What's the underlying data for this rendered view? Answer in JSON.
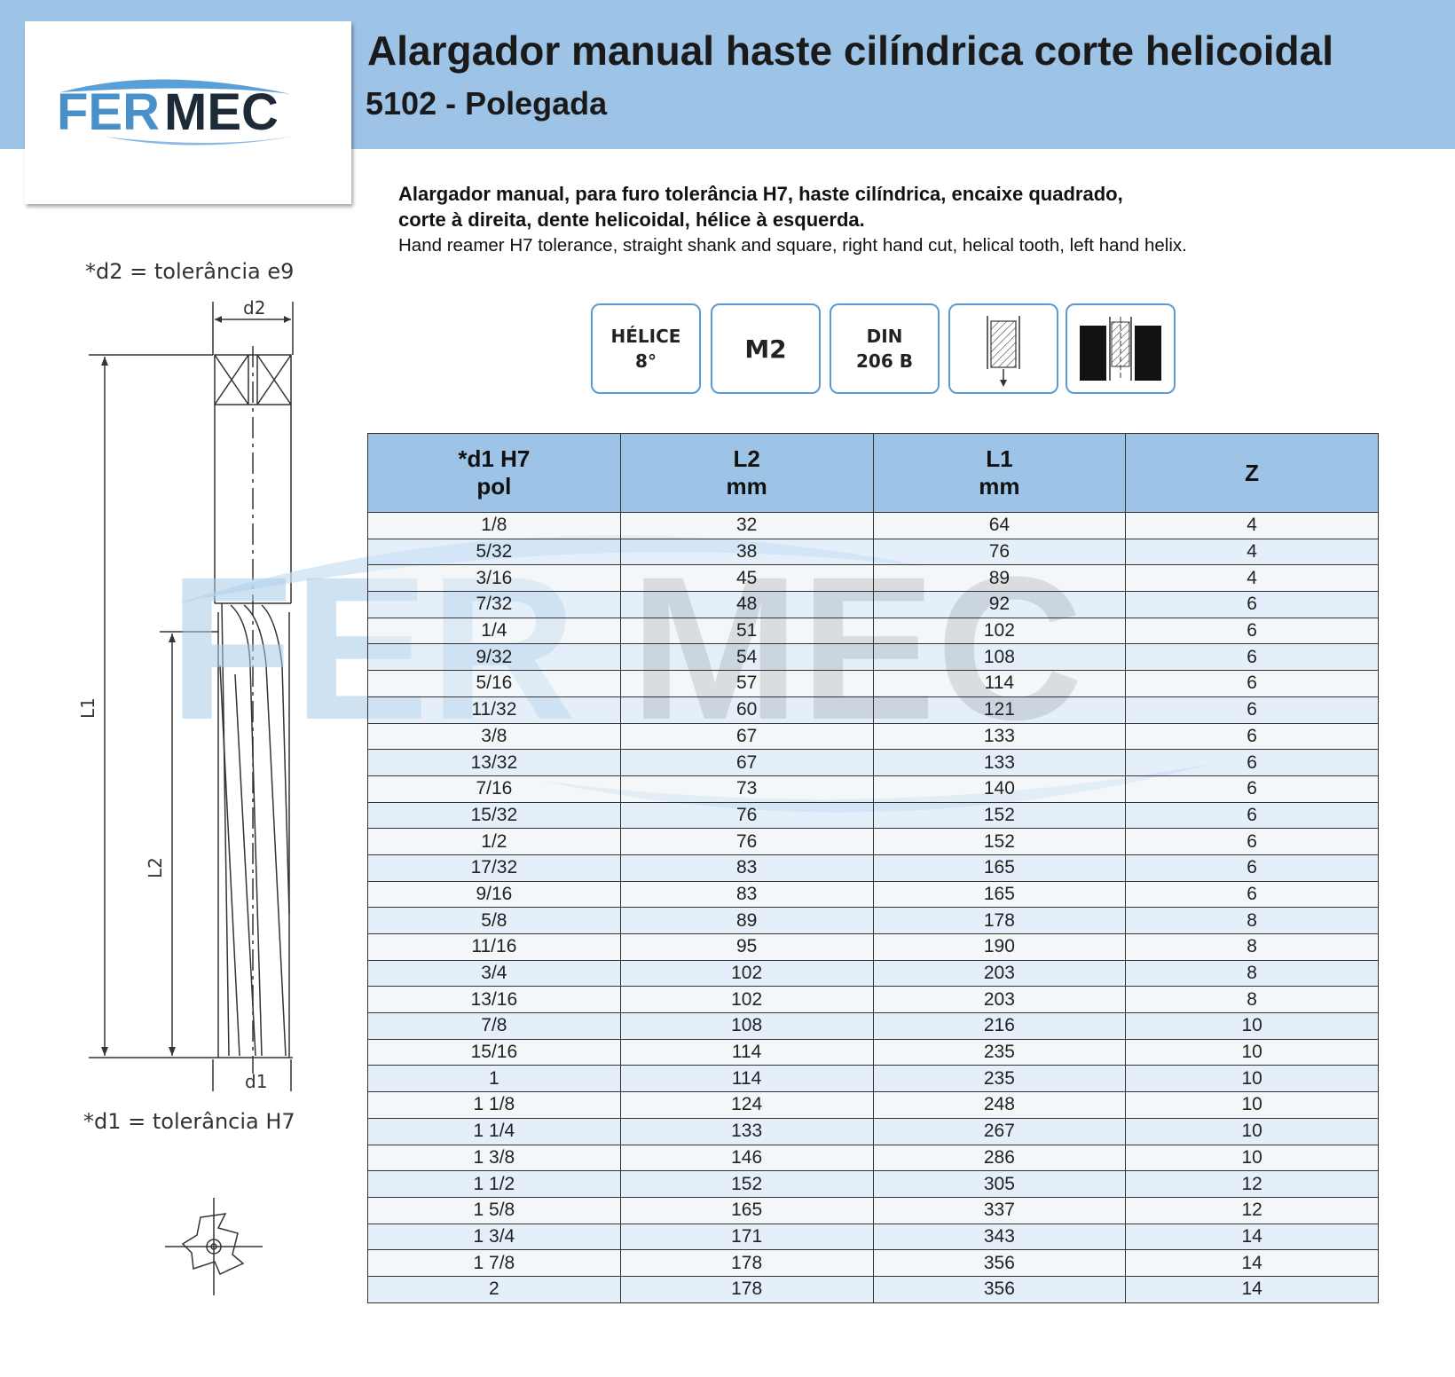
{
  "header": {
    "brand": "FERMEC",
    "brand_part1": "FER",
    "brand_part2": "MEC",
    "title": "Alargador manual haste cilíndrica corte helicoidal",
    "subtitle": "5102 - Polegada"
  },
  "description": {
    "pt_line1": "Alargador manual, para furo tolerância H7, haste cilíndrica, encaixe quadrado,",
    "pt_line2": "corte à direita, dente helicoidal, hélice à esquerda.",
    "en": "Hand reamer H7 tolerance, straight shank and square, right hand cut, helical tooth, left hand helix."
  },
  "drawing": {
    "tolerance_d2": "*d2 = tolerância e9",
    "tolerance_d1": "*d1 = tolerância H7",
    "label_d2": "d2",
    "label_d1": "d1",
    "label_L1": "L1",
    "label_L2": "L2"
  },
  "badges": {
    "helix_line1": "HÉLICE",
    "helix_line2": "8°",
    "material": "M2",
    "standard_line1": "DIN",
    "standard_line2": "206 B",
    "icon1": "through-hole-icon",
    "icon2": "blind-hole-icon"
  },
  "colors": {
    "header_band": "#9dc3e6",
    "badge_border": "#5b9bd5",
    "logo_blue": "#4a90c8",
    "logo_dark": "#1e2a38"
  },
  "table": {
    "headers": [
      {
        "line1": "*d1 H7",
        "line2": "pol"
      },
      {
        "line1": "L2",
        "line2": "mm"
      },
      {
        "line1": "L1",
        "line2": "mm"
      },
      {
        "line1": "Z",
        "line2": ""
      }
    ],
    "rows": [
      [
        "1/8",
        "32",
        "64",
        "4"
      ],
      [
        "5/32",
        "38",
        "76",
        "4"
      ],
      [
        "3/16",
        "45",
        "89",
        "4"
      ],
      [
        "7/32",
        "48",
        "92",
        "6"
      ],
      [
        "1/4",
        "51",
        "102",
        "6"
      ],
      [
        "9/32",
        "54",
        "108",
        "6"
      ],
      [
        "5/16",
        "57",
        "114",
        "6"
      ],
      [
        "11/32",
        "60",
        "121",
        "6"
      ],
      [
        "3/8",
        "67",
        "133",
        "6"
      ],
      [
        "13/32",
        "67",
        "133",
        "6"
      ],
      [
        "7/16",
        "73",
        "140",
        "6"
      ],
      [
        "15/32",
        "76",
        "152",
        "6"
      ],
      [
        "1/2",
        "76",
        "152",
        "6"
      ],
      [
        "17/32",
        "83",
        "165",
        "6"
      ],
      [
        "9/16",
        "83",
        "165",
        "6"
      ],
      [
        "5/8",
        "89",
        "178",
        "8"
      ],
      [
        "11/16",
        "95",
        "190",
        "8"
      ],
      [
        "3/4",
        "102",
        "203",
        "8"
      ],
      [
        "13/16",
        "102",
        "203",
        "8"
      ],
      [
        "7/8",
        "108",
        "216",
        "10"
      ],
      [
        "15/16",
        "114",
        "235",
        "10"
      ],
      [
        "1",
        "114",
        "235",
        "10"
      ],
      [
        "1 1/8",
        "124",
        "248",
        "10"
      ],
      [
        "1 1/4",
        "133",
        "267",
        "10"
      ],
      [
        "1 3/8",
        "146",
        "286",
        "10"
      ],
      [
        "1 1/2",
        "152",
        "305",
        "12"
      ],
      [
        "1 5/8",
        "165",
        "337",
        "12"
      ],
      [
        "1 3/4",
        "171",
        "343",
        "14"
      ],
      [
        "1 7/8",
        "178",
        "356",
        "14"
      ],
      [
        "2",
        "178",
        "356",
        "14"
      ]
    ]
  }
}
